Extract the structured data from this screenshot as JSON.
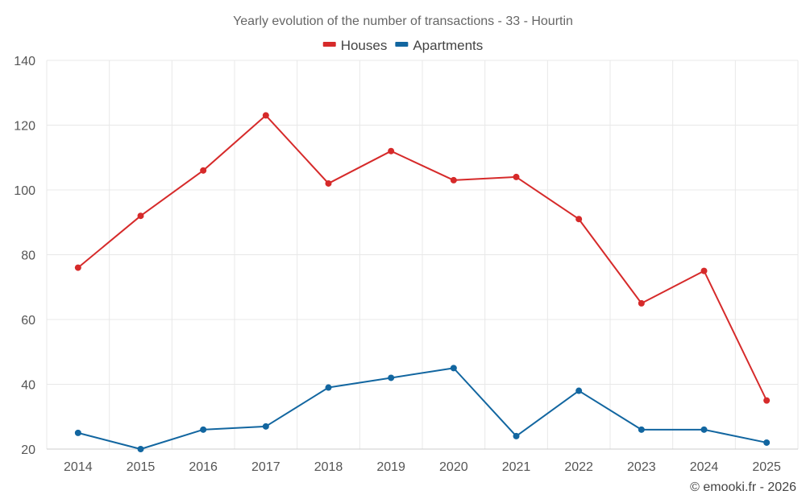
{
  "chart_data": {
    "type": "line",
    "title": "Yearly evolution of the number of transactions - 33 - Hourtin",
    "categories": [
      "2014",
      "2015",
      "2016",
      "2017",
      "2018",
      "2019",
      "2020",
      "2021",
      "2022",
      "2023",
      "2024",
      "2025"
    ],
    "series": [
      {
        "name": "Houses",
        "color": "#d62a2a",
        "values": [
          76,
          92,
          106,
          123,
          102,
          112,
          103,
          104,
          91,
          65,
          75,
          35
        ]
      },
      {
        "name": "Apartments",
        "color": "#1266a0",
        "values": [
          25,
          20,
          26,
          27,
          39,
          42,
          45,
          24,
          38,
          26,
          26,
          22
        ]
      }
    ],
    "xlabel": "",
    "ylabel": "",
    "ylim": [
      20,
      140
    ],
    "yticks": [
      20,
      40,
      60,
      80,
      100,
      120,
      140
    ],
    "grid": true,
    "legend": "top-center"
  },
  "credit": "© emooki.fr - 2026"
}
